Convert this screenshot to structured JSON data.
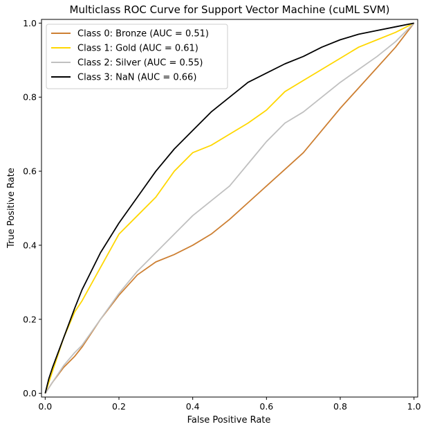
{
  "chart_data": {
    "type": "line",
    "title": "Multiclass ROC Curve for Support Vector Machine (cuML SVM)",
    "xlabel": "False Positive Rate",
    "ylabel": "True Positive Rate",
    "xlim": [
      -0.01,
      1.01
    ],
    "ylim": [
      -0.01,
      1.01
    ],
    "xticks": [
      "0.0",
      "0.2",
      "0.4",
      "0.6",
      "0.8",
      "1.0"
    ],
    "yticks": [
      "0.0",
      "0.2",
      "0.4",
      "0.6",
      "0.8",
      "1.0"
    ],
    "grid": false,
    "legend_position": "top-left",
    "series": [
      {
        "name": "Class 0: Bronze (AUC = 0.51)",
        "color": "#cd7f32",
        "x": [
          0.0,
          0.01,
          0.02,
          0.05,
          0.08,
          0.1,
          0.15,
          0.2,
          0.25,
          0.3,
          0.35,
          0.4,
          0.45,
          0.5,
          0.55,
          0.6,
          0.65,
          0.7,
          0.75,
          0.8,
          0.85,
          0.9,
          0.95,
          1.0
        ],
        "y": [
          0.0,
          0.015,
          0.03,
          0.07,
          0.1,
          0.125,
          0.2,
          0.265,
          0.32,
          0.355,
          0.375,
          0.4,
          0.43,
          0.47,
          0.515,
          0.56,
          0.605,
          0.65,
          0.71,
          0.77,
          0.825,
          0.88,
          0.935,
          1.0
        ]
      },
      {
        "name": "Class 1: Gold (AUC = 0.61)",
        "color": "#ffd700",
        "x": [
          0.0,
          0.01,
          0.02,
          0.05,
          0.08,
          0.1,
          0.15,
          0.2,
          0.25,
          0.3,
          0.35,
          0.4,
          0.45,
          0.5,
          0.55,
          0.6,
          0.65,
          0.7,
          0.75,
          0.8,
          0.85,
          0.9,
          0.95,
          1.0
        ],
        "y": [
          0.0,
          0.03,
          0.06,
          0.15,
          0.22,
          0.25,
          0.34,
          0.43,
          0.48,
          0.53,
          0.6,
          0.65,
          0.67,
          0.7,
          0.73,
          0.765,
          0.815,
          0.845,
          0.875,
          0.905,
          0.935,
          0.955,
          0.975,
          1.0
        ]
      },
      {
        "name": "Class 2: Silver (AUC = 0.55)",
        "color": "#c0c0c0",
        "x": [
          0.0,
          0.01,
          0.02,
          0.05,
          0.08,
          0.1,
          0.15,
          0.2,
          0.25,
          0.3,
          0.35,
          0.4,
          0.45,
          0.5,
          0.55,
          0.6,
          0.65,
          0.7,
          0.75,
          0.8,
          0.85,
          0.9,
          0.95,
          1.0
        ],
        "y": [
          0.0,
          0.015,
          0.03,
          0.075,
          0.11,
          0.13,
          0.2,
          0.27,
          0.33,
          0.38,
          0.43,
          0.48,
          0.52,
          0.56,
          0.62,
          0.68,
          0.73,
          0.76,
          0.8,
          0.84,
          0.875,
          0.91,
          0.95,
          1.0
        ]
      },
      {
        "name": "Class 3: NaN (AUC = 0.66)",
        "color": "#000000",
        "x": [
          0.0,
          0.01,
          0.02,
          0.05,
          0.08,
          0.1,
          0.15,
          0.2,
          0.25,
          0.3,
          0.35,
          0.4,
          0.45,
          0.5,
          0.55,
          0.6,
          0.65,
          0.7,
          0.75,
          0.8,
          0.85,
          0.9,
          0.95,
          1.0
        ],
        "y": [
          0.0,
          0.04,
          0.07,
          0.15,
          0.23,
          0.28,
          0.38,
          0.46,
          0.53,
          0.6,
          0.66,
          0.71,
          0.76,
          0.8,
          0.84,
          0.865,
          0.89,
          0.91,
          0.935,
          0.955,
          0.97,
          0.98,
          0.99,
          1.0
        ]
      }
    ]
  }
}
